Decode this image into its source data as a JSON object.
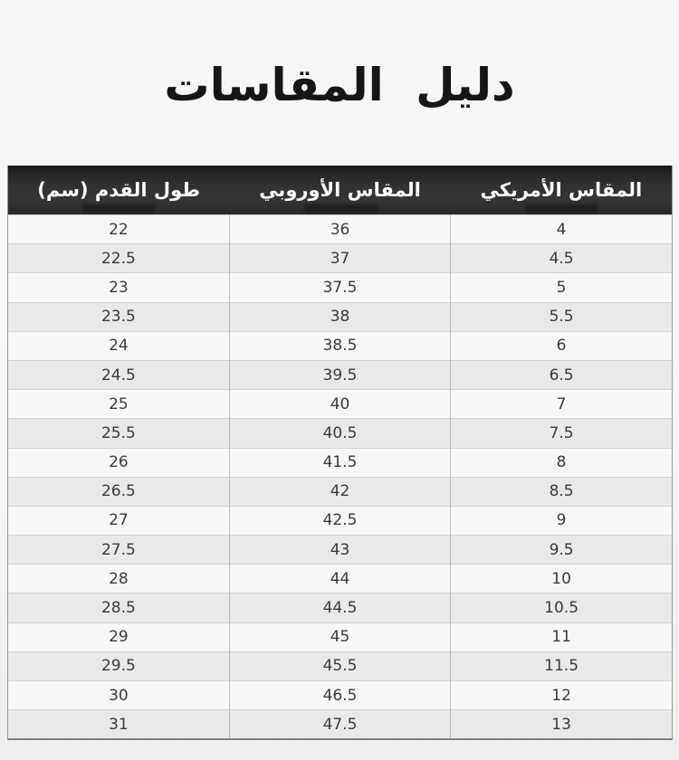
{
  "chart_data": {
    "type": "table",
    "title": "دليل المقاسات",
    "layout": {
      "direction": "rtl",
      "striped": true,
      "header_style": "dark",
      "columns_visual_order_right_to_left": [
        "us",
        "eu",
        "foot_cm"
      ]
    },
    "columns": [
      {
        "key": "us",
        "label": "المقاس الأمريكي"
      },
      {
        "key": "eu",
        "label": "المقاس الأوروبي"
      },
      {
        "key": "foot_cm",
        "label": "طول القدم (سم)"
      }
    ],
    "rows": [
      {
        "foot_cm": "22",
        "eu": "36",
        "us": "4"
      },
      {
        "foot_cm": "22.5",
        "eu": "37",
        "us": "4.5"
      },
      {
        "foot_cm": "23",
        "eu": "37.5",
        "us": "5"
      },
      {
        "foot_cm": "23.5",
        "eu": "38",
        "us": "5.5"
      },
      {
        "foot_cm": "24",
        "eu": "38.5",
        "us": "6"
      },
      {
        "foot_cm": "24.5",
        "eu": "39.5",
        "us": "6.5"
      },
      {
        "foot_cm": "25",
        "eu": "40",
        "us": "7"
      },
      {
        "foot_cm": "25.5",
        "eu": "40.5",
        "us": "7.5"
      },
      {
        "foot_cm": "26",
        "eu": "41.5",
        "us": "8"
      },
      {
        "foot_cm": "26.5",
        "eu": "42",
        "us": "8.5"
      },
      {
        "foot_cm": "27",
        "eu": "42.5",
        "us": "9"
      },
      {
        "foot_cm": "27.5",
        "eu": "43",
        "us": "9.5"
      },
      {
        "foot_cm": "28",
        "eu": "44",
        "us": "10"
      },
      {
        "foot_cm": "28.5",
        "eu": "44.5",
        "us": "10.5"
      },
      {
        "foot_cm": "29",
        "eu": "45",
        "us": "11"
      },
      {
        "foot_cm": "29.5",
        "eu": "45.5",
        "us": "11.5"
      },
      {
        "foot_cm": "30",
        "eu": "46.5",
        "us": "12"
      },
      {
        "foot_cm": "31",
        "eu": "47.5",
        "us": "13"
      }
    ]
  },
  "colors": {
    "page_bg": "#f6f5f3",
    "title_text": "#161616",
    "header_bg": "#2f2f2f",
    "header_text": "#fafafa",
    "row_light": "#f7f7f6",
    "row_dark": "#e9e9e8",
    "row_border": "#d2d2d2",
    "column_divider": "#bcbcbc",
    "outer_border": "#9a9a9a",
    "cell_text": "#3a3a3a"
  }
}
